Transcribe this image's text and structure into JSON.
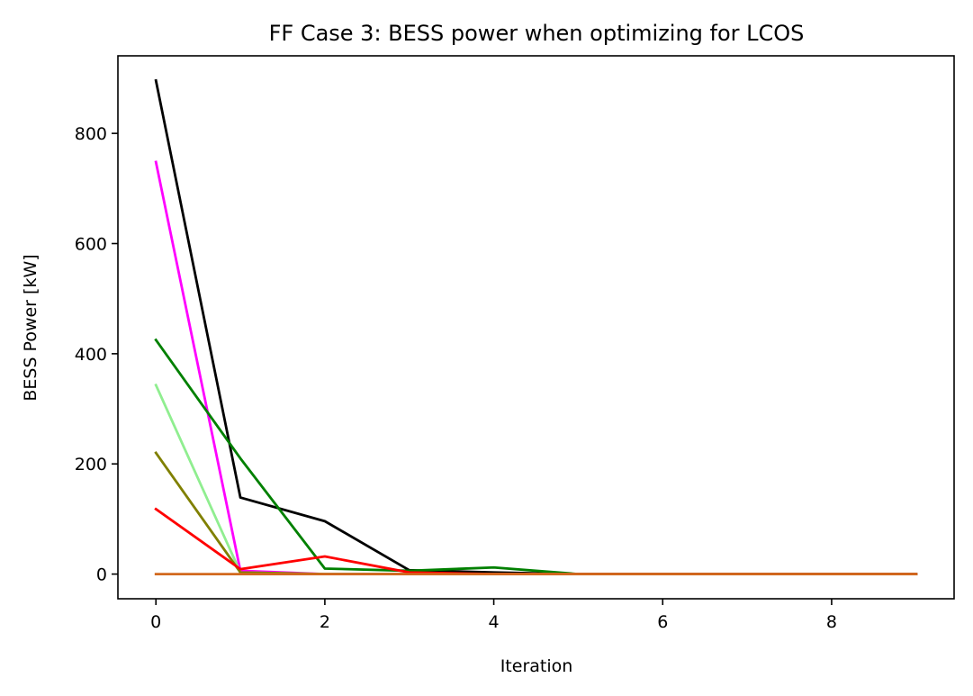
{
  "chart_data": {
    "type": "line",
    "title": "FF Case 3: BESS power when optimizing for LCOS",
    "xlabel": "Iteration",
    "ylabel": "BESS Power [kW]",
    "xlim": [
      -0.45,
      9.45
    ],
    "ylim": [
      -44.8,
      940.8
    ],
    "x_ticks": [
      0,
      2,
      4,
      6,
      8
    ],
    "y_ticks": [
      0,
      200,
      400,
      600,
      800
    ],
    "grid": false,
    "legend": "none",
    "x": [
      0,
      1,
      2,
      3,
      4,
      5,
      6,
      7,
      8,
      9
    ],
    "series": [
      {
        "color": "#000000",
        "values": [
          896,
          139,
          96,
          7,
          3,
          0,
          0,
          0,
          0,
          0
        ]
      },
      {
        "color": "#ff00ff",
        "values": [
          748,
          6,
          0,
          0,
          0,
          0,
          0,
          0,
          0,
          0
        ]
      },
      {
        "color": "#008000",
        "values": [
          425,
          210,
          10,
          6,
          12,
          0,
          0,
          0,
          0,
          0
        ]
      },
      {
        "color": "#90ee90",
        "values": [
          343,
          3,
          0,
          0,
          0,
          0,
          0,
          0,
          0,
          0
        ]
      },
      {
        "color": "#808000",
        "values": [
          220,
          3,
          0,
          0,
          0,
          0,
          0,
          0,
          0,
          0
        ]
      },
      {
        "color": "#ff0000",
        "values": [
          118,
          9,
          32,
          3,
          0,
          0,
          0,
          0,
          0,
          0
        ]
      },
      {
        "color": "#d2691e",
        "values": [
          0,
          0,
          0,
          0,
          0,
          0,
          0,
          0,
          0,
          0
        ]
      }
    ]
  }
}
